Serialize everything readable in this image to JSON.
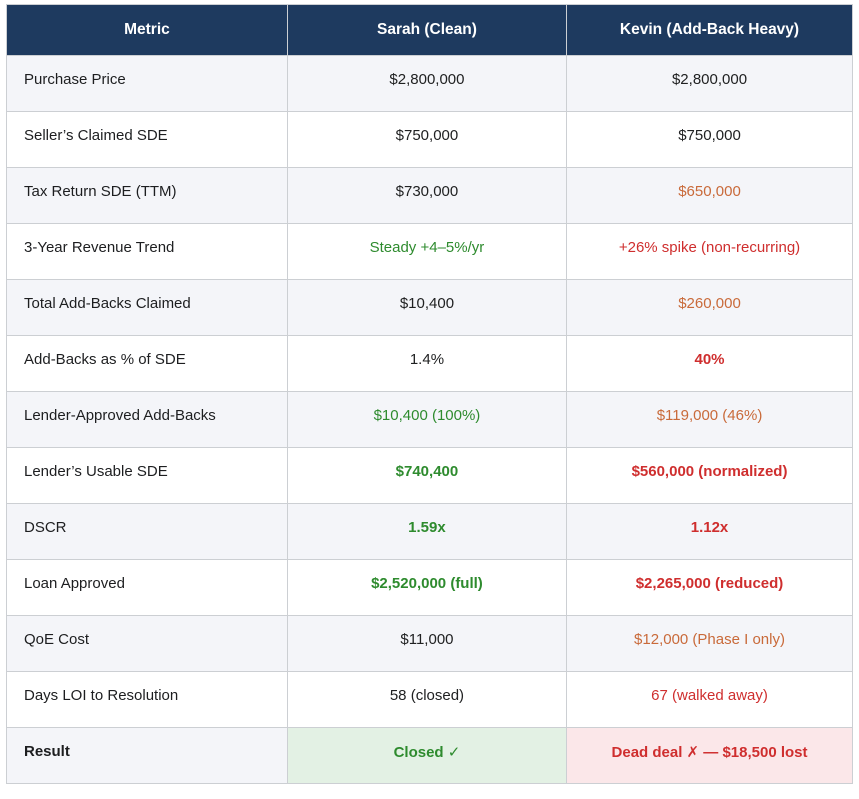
{
  "table": {
    "columns": [
      {
        "label": "Metric"
      },
      {
        "label": "Sarah (Clean)"
      },
      {
        "label": "Kevin (Add-Back Heavy)"
      }
    ],
    "rows": [
      {
        "metric": "Purchase Price",
        "metric_style": "plain",
        "sarah": "$2,800,000",
        "sarah_style": "plain",
        "kevin": "$2,800,000",
        "kevin_style": "plain"
      },
      {
        "metric": "Seller’s Claimed SDE",
        "metric_style": "plain",
        "sarah": "$750,000",
        "sarah_style": "plain",
        "kevin": "$750,000",
        "kevin_style": "plain"
      },
      {
        "metric": "Tax Return SDE (TTM)",
        "metric_style": "plain",
        "sarah": "$730,000",
        "sarah_style": "plain",
        "kevin": "$650,000",
        "kevin_style": "orange"
      },
      {
        "metric": "3-Year Revenue Trend",
        "metric_style": "plain",
        "sarah": "Steady +4–5%/yr",
        "sarah_style": "green",
        "kevin": "+26% spike (non-recurring)",
        "kevin_style": "red"
      },
      {
        "metric": "Total Add-Backs Claimed",
        "metric_style": "plain",
        "sarah": "$10,400",
        "sarah_style": "plain",
        "kevin": "$260,000",
        "kevin_style": "orange"
      },
      {
        "metric": "Add-Backs as % of SDE",
        "metric_style": "plain",
        "sarah": "1.4%",
        "sarah_style": "plain",
        "kevin": "40%",
        "kevin_style": "red bold"
      },
      {
        "metric": "Lender-Approved Add-Backs",
        "metric_style": "plain",
        "sarah": "$10,400 (100%)",
        "sarah_style": "green",
        "kevin": "$119,000 (46%)",
        "kevin_style": "orange"
      },
      {
        "metric": "Lender’s Usable SDE",
        "metric_style": "plain",
        "sarah": "$740,400",
        "sarah_style": "green bold",
        "kevin": "$560,000 (normalized)",
        "kevin_style": "red bold"
      },
      {
        "metric": "DSCR",
        "metric_style": "plain",
        "sarah": "1.59x",
        "sarah_style": "green bold",
        "kevin": "1.12x",
        "kevin_style": "red bold"
      },
      {
        "metric": "Loan Approved",
        "metric_style": "plain",
        "sarah": "$2,520,000 (full)",
        "sarah_style": "green bold",
        "kevin": "$2,265,000 (reduced)",
        "kevin_style": "red bold"
      },
      {
        "metric": "QoE Cost",
        "metric_style": "plain",
        "sarah": "$11,000",
        "sarah_style": "plain",
        "kevin": "$12,000 (Phase I only)",
        "kevin_style": "orange"
      },
      {
        "metric": "Days LOI to Resolution",
        "metric_style": "plain",
        "sarah": "58 (closed)",
        "sarah_style": "plain",
        "kevin": "67 (walked away)",
        "kevin_style": "red"
      },
      {
        "metric": "Result",
        "metric_style": "bold",
        "sarah": "Closed ✓",
        "sarah_style": "green bold bg-green",
        "kevin": "Dead deal ✗ — $18,500 lost",
        "kevin_style": "red bold bg-red"
      }
    ]
  },
  "colors": {
    "header_bg": "#1e3a5f",
    "header_text": "#ffffff",
    "row_stripe": "#f4f5f9",
    "row_white": "#ffffff",
    "border": "#cccfd3",
    "green_text": "#2e8b2e",
    "red_text": "#cf2e2e",
    "orange_text": "#c96a3a",
    "result_green_bg": "#e3f1e4",
    "result_red_bg": "#fbe7e9",
    "body_text": "#202122"
  },
  "icons": {
    "check_icon": "✓",
    "x_icon": "✗"
  }
}
